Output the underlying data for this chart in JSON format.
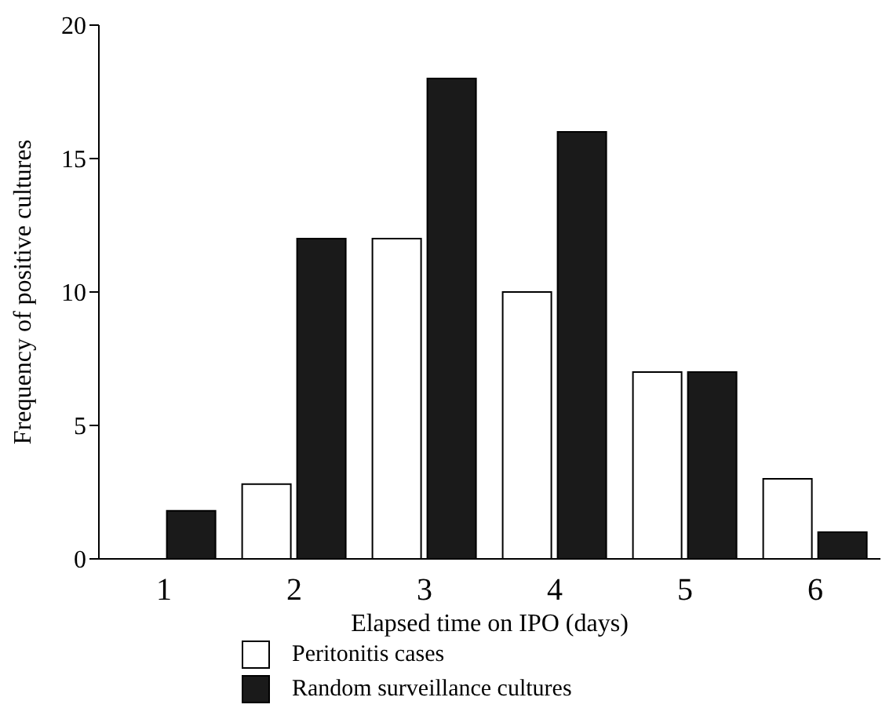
{
  "chart_data": {
    "type": "bar",
    "xlabel": "Elapsed time on IPO (days)",
    "ylabel": "Frequency of positive cultures",
    "categories": [
      "1",
      "2",
      "3",
      "4",
      "5",
      "6"
    ],
    "series": [
      {
        "name": "Peritonitis cases",
        "color": "#ffffff",
        "values": [
          null,
          2.8,
          12,
          10,
          7,
          3
        ]
      },
      {
        "name": "Random surveillance cultures",
        "color": "#1a1a1a",
        "values": [
          1.8,
          12,
          18,
          16,
          7,
          1
        ]
      }
    ],
    "ylim": [
      0,
      20
    ],
    "yticks": [
      0,
      5,
      10,
      15,
      20
    ],
    "grid": false,
    "legend": "bottom"
  }
}
